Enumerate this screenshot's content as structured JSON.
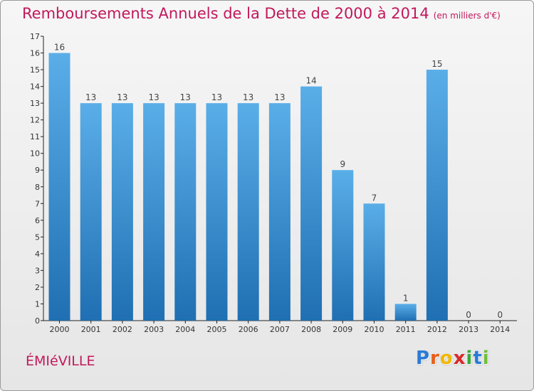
{
  "colors": {
    "title": "#c2185b",
    "bar_light": "#5aaee8",
    "bar_dark": "#1f6fb2",
    "axis": "#222222",
    "tick_text": "#333333",
    "label_text": "#444444"
  },
  "chart_data": {
    "type": "bar",
    "title": "Remboursements Annuels de la Dette de 2000 à 2014",
    "subtitle": "(en milliers d'€)",
    "xlabel": "",
    "ylabel": "",
    "categories": [
      "2000",
      "2001",
      "2002",
      "2003",
      "2004",
      "2005",
      "2006",
      "2007",
      "2008",
      "2009",
      "2010",
      "2011",
      "2012",
      "2013",
      "2014"
    ],
    "values": [
      16,
      13,
      13,
      13,
      13,
      13,
      13,
      13,
      14,
      9,
      7,
      1,
      15,
      0,
      0
    ],
    "ylim": [
      0,
      17
    ],
    "yticks": [
      "0",
      "1",
      "2",
      "3",
      "4",
      "5",
      "6",
      "7",
      "8",
      "9",
      "10",
      "11",
      "12",
      "13",
      "14",
      "15",
      "16",
      "17"
    ],
    "grid": false,
    "legend": "none"
  },
  "footer": {
    "commune": "ÉMIéVILLE",
    "logo": {
      "letters": [
        "P",
        "r",
        "o",
        "x",
        "i",
        "t",
        "i"
      ],
      "colors": [
        "#2b7bd6",
        "#e85d1a",
        "#f2b800",
        "#d8282a",
        "#3aa83a",
        "#2b7bd6",
        "#6fbf3a"
      ]
    }
  }
}
